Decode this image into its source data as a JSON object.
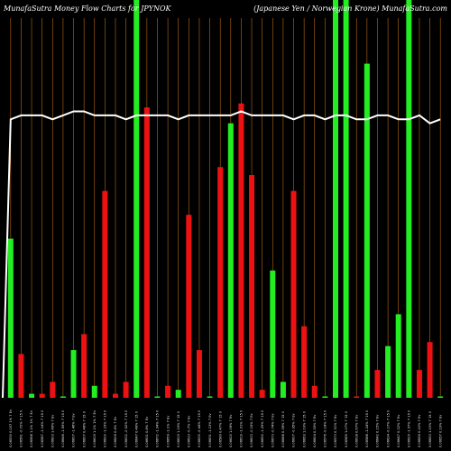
{
  "header": {
    "left_title": "MunafaSutra  Money Flow  Charts for JPYNOK",
    "right_title": "(Japanese   Yen  /  Norwegian  Krone) MunafaSutra.com"
  },
  "colors": {
    "background": "#000000",
    "up_bar": "#22ee22",
    "down_bar": "#ee1111",
    "grid": "#b56a12",
    "line": "#ffffff"
  },
  "chart_data": {
    "type": "bar",
    "title": "MunafaSutra  Money Flow  Charts for JPYNOK",
    "subtitle": "(Japanese   Yen  /  Norwegian  Krone) MunafaSutra.com",
    "ylim": [
      0,
      100
    ],
    "grid": "vertical",
    "categories": [
      "0.06530 0.007 1% 7 Ev",
      "0.06561 -0.72% 7 15 0",
      "0.06568 1.1% 1% 7 Ev",
      "0.06587 -1.14% 7 15 0",
      "0.06603 1.46% 7 Ev",
      "0.06646 -1.59% 7 15 0",
      "0.06607 -1.46% 7 Ev",
      "0.06607 0.48% 7 15 0",
      "0.06619 1.1% 1% 7 Ev",
      "0.06620 -1.15% 7 15 0",
      "0.06626 0.4% 7 Ev",
      "0.06632 -0.52% 7 15 0",
      "0.06647 0.48% 7 15 0",
      "0.06631 0.8% 7 Ev",
      "0.06672 -1.04% 7 15 0",
      "0.06659 -1.1% 7 Ev",
      "0.06619 1.15% 7 15 0",
      "0.06633 -0.7% 7 Ev",
      "0.06630 -0.44% 7 15 0",
      "0.06631 -1.13% 7 Ev",
      "0.06589 0.47% 7 15 0",
      "0.06620 1.06% 7 Ev",
      "0.06619 -1.01% 7 15 0",
      "0.06633 -0.15% 7 Ev",
      "0.06650 -1.29% 7 15 0",
      "0.06673 -0.74% 7 Ev",
      "0.06688 0.36% 7 15 0",
      "0.06607 -0.95% 7 Ev",
      "0.06663 1.03% 7 15 0",
      "0.06604 0.35% 7 Ev",
      "0.06576 -0.14% 7 15 0",
      "0.06573 0.31% 7 Ev",
      "0.06589 1.07% 7 15 0",
      "0.06618 0.67% 7 Ev",
      "0.06588 -1.24% 7 15 0",
      "0.06642 0.15% 7 Ev",
      "0.06634 -0.17% 7 15 0",
      "0.06647 0.32% 7 Ev",
      "0.06625 -1.57% 7 15 0",
      "0.06656 0.22% 7 Ev",
      "0.06653 1.10% 7 15 0",
      "0.06657 0.19% 7 Ev"
    ],
    "bar_colors": [
      "green",
      "red",
      "green",
      "red",
      "red",
      "green",
      "green",
      "red",
      "green",
      "red",
      "red",
      "red",
      "green",
      "red",
      "green",
      "red",
      "green",
      "red",
      "red",
      "green",
      "red",
      "green",
      "red",
      "red",
      "red",
      "green",
      "green",
      "red",
      "red",
      "red",
      "green",
      "green",
      "green",
      "red",
      "green",
      "red",
      "green",
      "green",
      "green",
      "red",
      "red",
      "green"
    ],
    "values": [
      40,
      11,
      1,
      1,
      4,
      0,
      12,
      16,
      3,
      52,
      1,
      4,
      100,
      73,
      0,
      3,
      2,
      46,
      12,
      0,
      58,
      69,
      74,
      56,
      2,
      32,
      4,
      52,
      18,
      3,
      0,
      100,
      100,
      0,
      84,
      7,
      13,
      21,
      100,
      7,
      14,
      0
    ],
    "line": [
      70,
      71,
      71,
      71,
      70,
      71,
      72,
      72,
      71,
      71,
      71,
      70,
      71,
      71,
      71,
      71,
      70,
      71,
      71,
      71,
      71,
      71,
      72,
      71,
      71,
      71,
      71,
      70,
      71,
      71,
      70,
      71,
      71,
      70,
      70,
      71,
      71,
      70,
      70,
      71,
      69,
      70
    ]
  }
}
